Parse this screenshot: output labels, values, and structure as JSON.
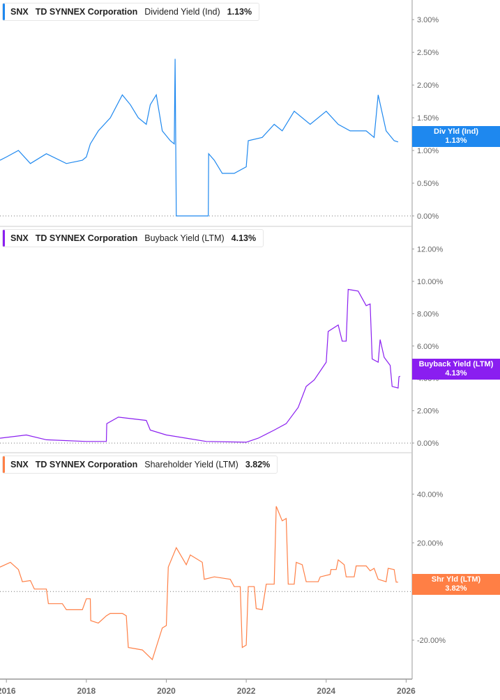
{
  "ticker": "SNX",
  "company": "TD SYNNEX Corporation",
  "chart_data": [
    {
      "type": "line",
      "metric": "Dividend Yield (Ind)",
      "current": "1.13%",
      "badge_label": "Div Yld (Ind)",
      "color": "#1e88ef",
      "yticks": [
        "0.00%",
        "0.50%",
        "1.00%",
        "1.50%",
        "2.00%",
        "2.50%",
        "3.00%"
      ],
      "ytick_values": [
        0,
        0.5,
        1,
        1.5,
        2,
        2.5,
        3
      ],
      "ylim": [
        -0.16,
        3.3
      ],
      "x": [
        2015.84,
        2016.0,
        2016.3,
        2016.6,
        2017.0,
        2017.5,
        2017.9,
        2018.0,
        2018.1,
        2018.3,
        2018.6,
        2018.9,
        2019.1,
        2019.3,
        2019.5,
        2019.6,
        2019.75,
        2019.9,
        2020.1,
        2020.2,
        2020.22,
        2020.25,
        2021.05,
        2021.06,
        2021.2,
        2021.4,
        2021.7,
        2022.0,
        2022.05,
        2022.4,
        2022.7,
        2022.9,
        2023.2,
        2023.6,
        2024.0,
        2024.3,
        2024.6,
        2025.0,
        2025.2,
        2025.3,
        2025.5,
        2025.7,
        2025.8
      ],
      "y": [
        0.85,
        0.9,
        1.0,
        0.8,
        0.95,
        0.8,
        0.85,
        0.9,
        1.1,
        1.3,
        1.5,
        1.85,
        1.7,
        1.5,
        1.4,
        1.7,
        1.85,
        1.3,
        1.15,
        1.1,
        2.4,
        0.0,
        0.0,
        0.95,
        0.85,
        0.65,
        0.65,
        0.75,
        1.15,
        1.2,
        1.4,
        1.3,
        1.6,
        1.4,
        1.6,
        1.4,
        1.3,
        1.3,
        1.2,
        1.85,
        1.3,
        1.15,
        1.13
      ]
    },
    {
      "type": "line",
      "metric": "Buyback Yield (LTM)",
      "current": "4.13%",
      "badge_label": "Buyback Yield (LTM)",
      "color": "#8a1ef0",
      "yticks": [
        "0.00%",
        "2.00%",
        "4.00%",
        "6.00%",
        "8.00%",
        "10.00%",
        "12.00%"
      ],
      "ytick_values": [
        0,
        2,
        4,
        6,
        8,
        10,
        12
      ],
      "ylim": [
        -0.6,
        13.4
      ],
      "x": [
        2015.84,
        2016.5,
        2017.0,
        2018.0,
        2018.5,
        2018.51,
        2018.8,
        2019.5,
        2019.6,
        2020.0,
        2020.5,
        2021.0,
        2022.0,
        2022.3,
        2022.7,
        2023.0,
        2023.3,
        2023.5,
        2023.7,
        2024.0,
        2024.05,
        2024.3,
        2024.4,
        2024.5,
        2024.55,
        2024.8,
        2025.0,
        2025.1,
        2025.15,
        2025.3,
        2025.35,
        2025.45,
        2025.6,
        2025.65,
        2025.8,
        2025.82,
        2025.85
      ],
      "y": [
        0.3,
        0.5,
        0.2,
        0.1,
        0.1,
        1.2,
        1.6,
        1.4,
        0.8,
        0.5,
        0.3,
        0.1,
        0.05,
        0.3,
        0.8,
        1.2,
        2.2,
        3.5,
        3.9,
        5.0,
        6.9,
        7.3,
        6.3,
        6.3,
        9.5,
        9.4,
        8.5,
        8.6,
        5.2,
        5.0,
        6.4,
        5.3,
        4.8,
        3.5,
        3.4,
        4.1,
        4.13
      ]
    },
    {
      "type": "line",
      "metric": "Shareholder Yield (LTM)",
      "current": "3.82%",
      "badge_label": "Shr Yld (LTM)",
      "color": "#ff7f45",
      "yticks": [
        "-20.00%",
        "0.00%",
        "20.00%",
        "40.00%"
      ],
      "ytick_values": [
        -20,
        0,
        20,
        40
      ],
      "ylim": [
        -36,
        57
      ],
      "x": [
        2015.84,
        2016.1,
        2016.3,
        2016.4,
        2016.6,
        2016.7,
        2017.0,
        2017.05,
        2017.4,
        2017.5,
        2017.9,
        2018.0,
        2018.1,
        2018.11,
        2018.3,
        2018.5,
        2018.6,
        2018.9,
        2019.0,
        2019.05,
        2019.4,
        2019.65,
        2019.9,
        2020.0,
        2020.05,
        2020.25,
        2020.5,
        2020.6,
        2020.9,
        2020.95,
        2021.2,
        2021.6,
        2021.7,
        2021.85,
        2021.9,
        2022.0,
        2022.05,
        2022.2,
        2022.25,
        2022.4,
        2022.5,
        2022.7,
        2022.75,
        2022.9,
        2023.0,
        2023.05,
        2023.2,
        2023.25,
        2023.4,
        2023.5,
        2023.8,
        2023.85,
        2024.1,
        2024.12,
        2024.25,
        2024.3,
        2024.45,
        2024.5,
        2024.7,
        2024.75,
        2025.0,
        2025.1,
        2025.2,
        2025.3,
        2025.5,
        2025.55,
        2025.7,
        2025.75,
        2025.8
      ],
      "y": [
        10,
        12,
        9,
        4,
        4.5,
        1,
        1,
        -5,
        -5,
        -7.5,
        -7.5,
        -3,
        -3,
        -12,
        -13,
        -10,
        -9,
        -9,
        -10,
        -23,
        -24,
        -28,
        -15,
        -14,
        10,
        18,
        11,
        15,
        12,
        5,
        6,
        5,
        2,
        2,
        -23,
        -22,
        2,
        2,
        -7,
        -7.5,
        3,
        3,
        35,
        29,
        30,
        3,
        3,
        12,
        11,
        4,
        4,
        6,
        7,
        9,
        9,
        13,
        11,
        6,
        6,
        10.5,
        10.5,
        8.5,
        9.5,
        5,
        4,
        9.5,
        9,
        3.82,
        3.82
      ]
    }
  ],
  "xaxis": {
    "ticks": [
      "2016",
      "2018",
      "2020",
      "2022",
      "2024",
      "2026"
    ],
    "tick_values": [
      2016,
      2018,
      2020,
      2022,
      2024,
      2026
    ],
    "xlim": [
      2015.84,
      2026.15
    ]
  }
}
